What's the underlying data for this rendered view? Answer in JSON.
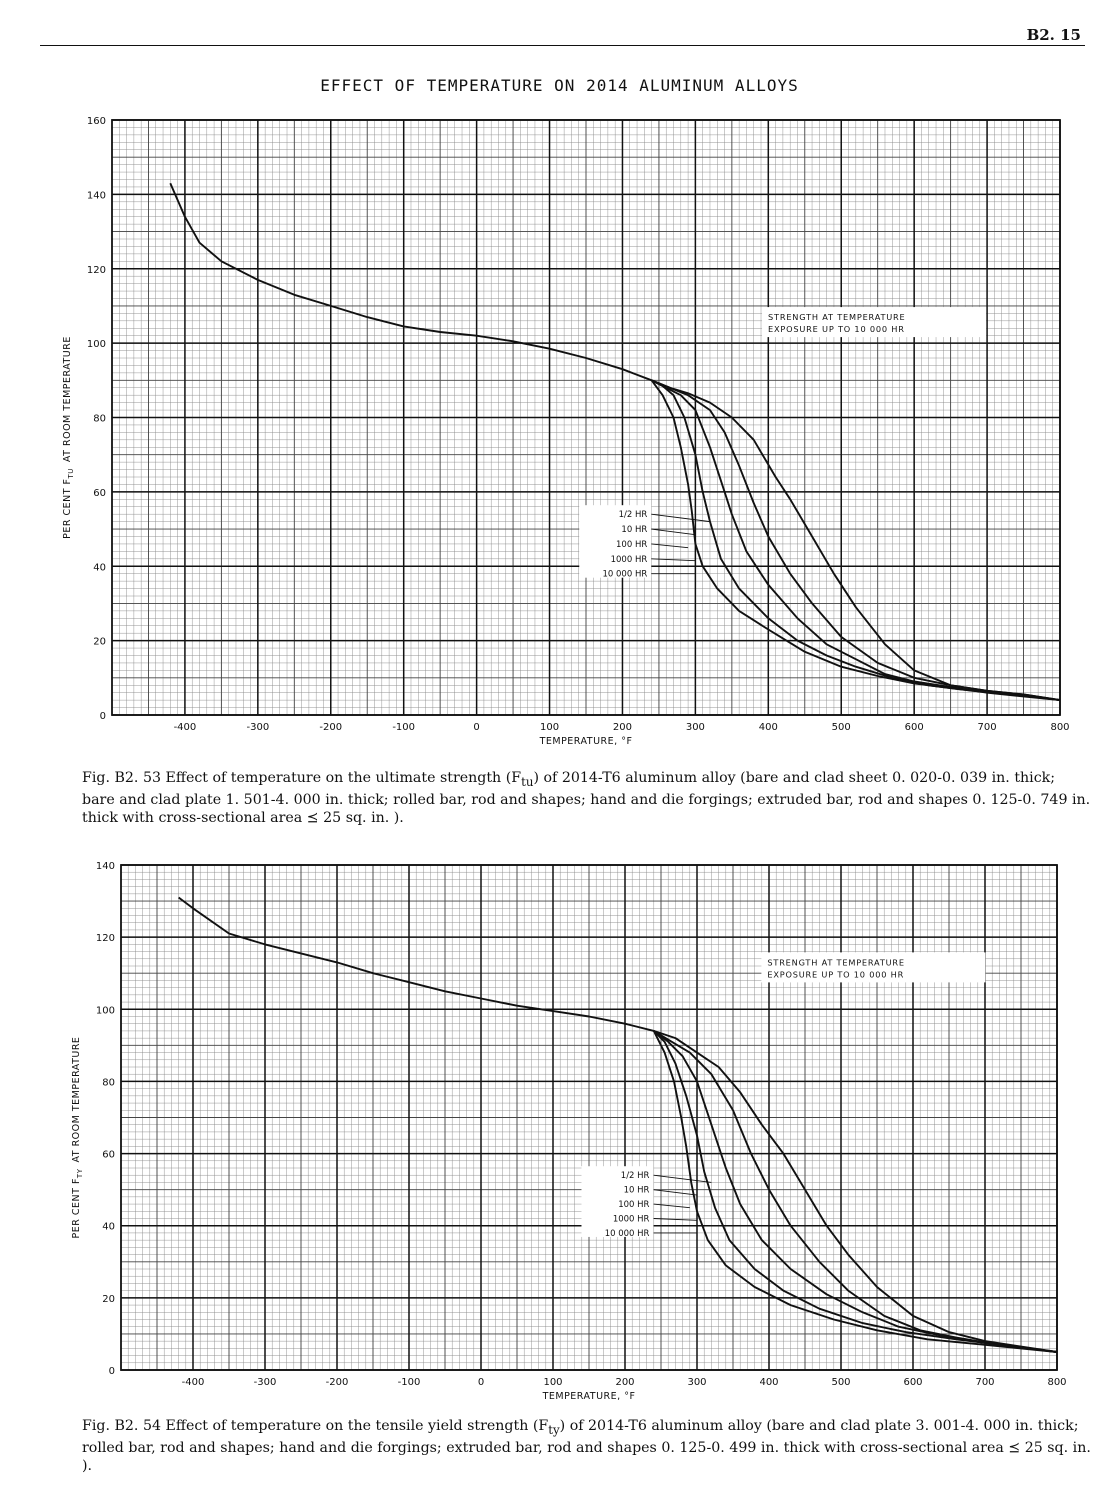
{
  "page": {
    "page_id": "B2. 15",
    "title": "EFFECT OF TEMPERATURE ON 2014 ALUMINUM ALLOYS"
  },
  "chart_data": [
    {
      "type": "line",
      "xlabel": "TEMPERATURE, °F",
      "ylabel": "PER CENT F_TU AT ROOM TEMPERATURE",
      "ylabel_main": "PER CENT F",
      "ylabel_sub": "TU",
      "ylabel_rest": "AT ROOM TEMPERATURE",
      "xlim": [
        -500,
        800
      ],
      "ylim": [
        0,
        160
      ],
      "x_ticks": [
        -400,
        -300,
        -200,
        -100,
        0,
        100,
        200,
        300,
        400,
        500,
        600,
        700,
        800
      ],
      "x_tick_labels": [
        "-400",
        "-300",
        "-200",
        "-100",
        "0",
        "100",
        "200",
        "300",
        "400",
        "500",
        "600",
        "700",
        "800"
      ],
      "y_ticks": [
        0,
        20,
        40,
        60,
        80,
        100,
        120,
        140,
        160
      ],
      "y_tick_labels": [
        "0",
        "20",
        "40",
        "60",
        "80",
        "100",
        "120",
        "140",
        "160"
      ],
      "grid": true,
      "annotation": [
        "STRENGTH AT TEMPERATURE",
        "EXPOSURE UP TO 10 000 HR"
      ],
      "common_curve": [
        [
          -420,
          143
        ],
        [
          -400,
          134
        ],
        [
          -380,
          127
        ],
        [
          -350,
          122
        ],
        [
          -300,
          117
        ],
        [
          -250,
          113
        ],
        [
          -200,
          110
        ],
        [
          -150,
          107
        ],
        [
          -100,
          104.5
        ],
        [
          -50,
          103
        ],
        [
          0,
          102
        ],
        [
          50,
          100.5
        ],
        [
          100,
          98.5
        ],
        [
          150,
          96
        ],
        [
          200,
          93
        ],
        [
          240,
          90
        ]
      ],
      "series": [
        {
          "name": "1/2 HR",
          "label_anchor": [
            320,
            52
          ],
          "points": [
            [
              240,
              90
            ],
            [
              265,
              88
            ],
            [
              290,
              86.5
            ],
            [
              320,
              84
            ],
            [
              350,
              80
            ],
            [
              380,
              74
            ],
            [
              410,
              64
            ],
            [
              430,
              58
            ],
            [
              460,
              48
            ],
            [
              490,
              38
            ],
            [
              520,
              29
            ],
            [
              560,
              19
            ],
            [
              600,
              12
            ],
            [
              650,
              8
            ],
            [
              700,
              6.5
            ],
            [
              750,
              5.5
            ],
            [
              800,
              4
            ]
          ]
        },
        {
          "name": "10 HR",
          "label_anchor": [
            300,
            48.5
          ],
          "points": [
            [
              240,
              90
            ],
            [
              265,
              88
            ],
            [
              290,
              86
            ],
            [
              320,
              82
            ],
            [
              340,
              76
            ],
            [
              360,
              67
            ],
            [
              380,
              57
            ],
            [
              400,
              48
            ],
            [
              430,
              38
            ],
            [
              460,
              30
            ],
            [
              500,
              21
            ],
            [
              550,
              14
            ],
            [
              600,
              10
            ],
            [
              650,
              8
            ],
            [
              700,
              6.5
            ],
            [
              750,
              5.5
            ],
            [
              800,
              4
            ]
          ]
        },
        {
          "name": "100 HR",
          "label_anchor": [
            290,
            45
          ],
          "points": [
            [
              240,
              90
            ],
            [
              260,
              88
            ],
            [
              280,
              86
            ],
            [
              300,
              82
            ],
            [
              320,
              72
            ],
            [
              340,
              60
            ],
            [
              350,
              54
            ],
            [
              370,
              44
            ],
            [
              400,
              35
            ],
            [
              440,
              26
            ],
            [
              480,
              19
            ],
            [
              520,
              15
            ],
            [
              560,
              11
            ],
            [
              600,
              9
            ],
            [
              650,
              7.5
            ],
            [
              700,
              6
            ],
            [
              750,
              5
            ],
            [
              800,
              4
            ]
          ]
        },
        {
          "name": "1000 HR",
          "label_anchor": [
            300,
            41.5
          ],
          "points": [
            [
              240,
              90
            ],
            [
              255,
              88.5
            ],
            [
              270,
              86
            ],
            [
              285,
              80
            ],
            [
              300,
              70
            ],
            [
              310,
              60
            ],
            [
              320,
              52
            ],
            [
              335,
              42
            ],
            [
              360,
              34
            ],
            [
              400,
              26
            ],
            [
              440,
              20
            ],
            [
              480,
              16
            ],
            [
              520,
              13
            ],
            [
              570,
              10
            ],
            [
              620,
              8
            ],
            [
              680,
              6.5
            ],
            [
              740,
              5.5
            ],
            [
              800,
              4
            ]
          ]
        },
        {
          "name": "10 000 HR",
          "label_anchor": [
            300,
            38
          ],
          "points": [
            [
              240,
              90
            ],
            [
              255,
              86
            ],
            [
              270,
              80
            ],
            [
              280,
              72
            ],
            [
              290,
              62
            ],
            [
              295,
              55
            ],
            [
              300,
              46
            ],
            [
              310,
              40
            ],
            [
              330,
              34
            ],
            [
              360,
              28
            ],
            [
              400,
              23
            ],
            [
              450,
              17
            ],
            [
              500,
              13
            ],
            [
              550,
              10.5
            ],
            [
              600,
              8.5
            ],
            [
              660,
              7
            ],
            [
              720,
              5.8
            ],
            [
              800,
              4
            ]
          ]
        }
      ]
    },
    {
      "type": "line",
      "xlabel": "TEMPERATURE, °F",
      "ylabel": "PER CENT F_TY AT ROOM TEMPERATURE",
      "ylabel_main": "PER CENT F",
      "ylabel_sub": "TY",
      "ylabel_rest": "AT ROOM TEMPERATURE",
      "xlim": [
        -500,
        800
      ],
      "ylim": [
        0,
        140
      ],
      "x_ticks": [
        -400,
        -300,
        -200,
        -100,
        0,
        100,
        200,
        300,
        400,
        500,
        600,
        700,
        800
      ],
      "x_tick_labels": [
        "-400",
        "-300",
        "-200",
        "-100",
        "0",
        "100",
        "200",
        "300",
        "400",
        "500",
        "600",
        "700",
        "800"
      ],
      "y_ticks": [
        0,
        20,
        40,
        60,
        80,
        100,
        120,
        140
      ],
      "y_tick_labels": [
        "0",
        "20",
        "40",
        "60",
        "80",
        "100",
        "120",
        "140"
      ],
      "grid": true,
      "annotation": [
        "STRENGTH AT TEMPERATURE",
        "EXPOSURE UP TO 10 000 HR"
      ],
      "common_curve": [
        [
          -420,
          131
        ],
        [
          -400,
          128
        ],
        [
          -350,
          121
        ],
        [
          -300,
          118
        ],
        [
          -250,
          115.5
        ],
        [
          -200,
          113
        ],
        [
          -150,
          110
        ],
        [
          -100,
          107.5
        ],
        [
          -50,
          105
        ],
        [
          0,
          103
        ],
        [
          50,
          101
        ],
        [
          100,
          99.5
        ],
        [
          150,
          98
        ],
        [
          200,
          96
        ],
        [
          240,
          94
        ]
      ],
      "series": [
        {
          "name": "1/2 HR",
          "label_anchor": [
            320,
            52
          ],
          "points": [
            [
              240,
              94
            ],
            [
              270,
              92
            ],
            [
              300,
              88
            ],
            [
              330,
              84
            ],
            [
              360,
              77
            ],
            [
              390,
              68
            ],
            [
              420,
              60
            ],
            [
              450,
              50
            ],
            [
              480,
              40
            ],
            [
              510,
              32
            ],
            [
              550,
              23
            ],
            [
              600,
              15
            ],
            [
              650,
              10.5
            ],
            [
              700,
              8
            ],
            [
              750,
              6.5
            ],
            [
              800,
              5
            ]
          ]
        },
        {
          "name": "10 HR",
          "label_anchor": [
            300,
            48.5
          ],
          "points": [
            [
              240,
              94
            ],
            [
              265,
              91
            ],
            [
              290,
              88
            ],
            [
              320,
              82
            ],
            [
              350,
              72
            ],
            [
              375,
              60
            ],
            [
              400,
              50
            ],
            [
              430,
              40
            ],
            [
              470,
              30
            ],
            [
              510,
              22
            ],
            [
              560,
              15
            ],
            [
              610,
              11
            ],
            [
              660,
              9
            ],
            [
              720,
              7
            ],
            [
              800,
              5
            ]
          ]
        },
        {
          "name": "100 HR",
          "label_anchor": [
            290,
            45
          ],
          "points": [
            [
              240,
              94
            ],
            [
              260,
              91
            ],
            [
              280,
              87
            ],
            [
              300,
              80
            ],
            [
              320,
              68
            ],
            [
              340,
              56
            ],
            [
              360,
              46
            ],
            [
              390,
              36
            ],
            [
              430,
              28
            ],
            [
              480,
              21
            ],
            [
              530,
              16
            ],
            [
              580,
              12
            ],
            [
              640,
              9.5
            ],
            [
              700,
              7.5
            ],
            [
              800,
              5
            ]
          ]
        },
        {
          "name": "1000 HR",
          "label_anchor": [
            300,
            41.5
          ],
          "points": [
            [
              240,
              94
            ],
            [
              255,
              91
            ],
            [
              270,
              85
            ],
            [
              285,
              76
            ],
            [
              300,
              65
            ],
            [
              310,
              55
            ],
            [
              325,
              45
            ],
            [
              345,
              36
            ],
            [
              380,
              28
            ],
            [
              420,
              22
            ],
            [
              470,
              17
            ],
            [
              530,
              13
            ],
            [
              590,
              10.5
            ],
            [
              660,
              8.5
            ],
            [
              800,
              5
            ]
          ]
        },
        {
          "name": "10 000 HR",
          "label_anchor": [
            300,
            38
          ],
          "points": [
            [
              240,
              94
            ],
            [
              255,
              88
            ],
            [
              268,
              80
            ],
            [
              278,
              70
            ],
            [
              285,
              62
            ],
            [
              292,
              52
            ],
            [
              300,
              44
            ],
            [
              315,
              36
            ],
            [
              340,
              29
            ],
            [
              380,
              23
            ],
            [
              430,
              18
            ],
            [
              490,
              14
            ],
            [
              550,
              11
            ],
            [
              620,
              8.5
            ],
            [
              700,
              7
            ],
            [
              800,
              5
            ]
          ]
        }
      ]
    }
  ],
  "captions": {
    "fig1_intro": "Fig.  B2. 53  Effect of temperature on the ultimate strength (F",
    "fig1_sub": "tu",
    "fig1_rest": ") of 2014-T6 aluminum alloy (bare and clad sheet 0. 020-0. 039 in.  thick; bare and clad plate 1. 501-4. 000 in.  thick; rolled bar,  rod and shapes; hand and die forgings; extruded bar,  rod and shapes 0. 125-0. 749 in.  thick with cross-sectional area ⪯ 25 sq.  in. ).",
    "fig2_intro": "Fig.  B2. 54  Effect of temperature on the tensile yield strength (F",
    "fig2_sub": "ty",
    "fig2_rest": ") of 2014-T6 aluminum alloy (bare and clad plate 3. 001-4. 000 in.  thick; rolled bar,  rod and shapes; hand and die forgings; extruded bar,  rod and shapes 0. 125-0. 499 in.  thick with cross-sectional area ⪯ 25 sq.  in. )."
  }
}
